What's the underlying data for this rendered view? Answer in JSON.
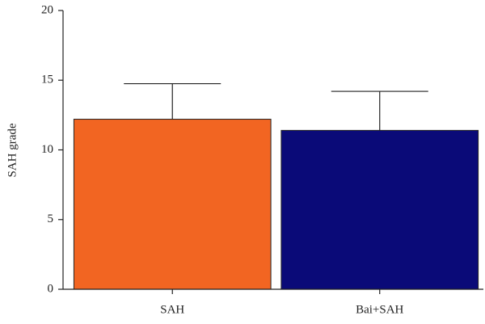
{
  "chart_data": {
    "type": "bar",
    "ylabel": "SAH grade",
    "categories": [
      "SAH",
      "Bai+SAH"
    ],
    "values": [
      12.2,
      11.4
    ],
    "errors": [
      2.55,
      2.8
    ],
    "colors": [
      "#f26522",
      "#0a0a78"
    ],
    "ylim": [
      0,
      20
    ],
    "yticks": [
      0,
      5,
      10,
      15,
      20
    ],
    "grid": false
  }
}
